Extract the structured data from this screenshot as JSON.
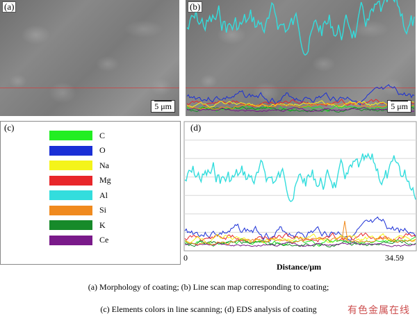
{
  "panels": {
    "a": {
      "label": "(a)",
      "scale_bar": "5 μm"
    },
    "b": {
      "label": "(b)",
      "scale_bar": "5 μm"
    },
    "c": {
      "label": "(c)"
    },
    "d": {
      "label": "(d)",
      "x_axis": {
        "title": "Distance/μm",
        "min_label": "0",
        "max_label": "34.59"
      }
    }
  },
  "legend": [
    {
      "element": "C",
      "color": "#22ee22"
    },
    {
      "element": "O",
      "color": "#1a2fd6"
    },
    {
      "element": "Na",
      "color": "#f4f41a"
    },
    {
      "element": "Mg",
      "color": "#e8262a"
    },
    {
      "element": "Al",
      "color": "#33dddd"
    },
    {
      "element": "Si",
      "color": "#f08a1e"
    },
    {
      "element": "K",
      "color": "#178a2a"
    },
    {
      "element": "Ce",
      "color": "#7a1a8a"
    }
  ],
  "captions": {
    "line1": "(a) Morphology of coating; (b) Line scan map corresponding to coating;",
    "line2": "(c) Elements colors in line scanning; (d) EDS analysis of coating"
  },
  "watermark": "有色金属在线"
}
